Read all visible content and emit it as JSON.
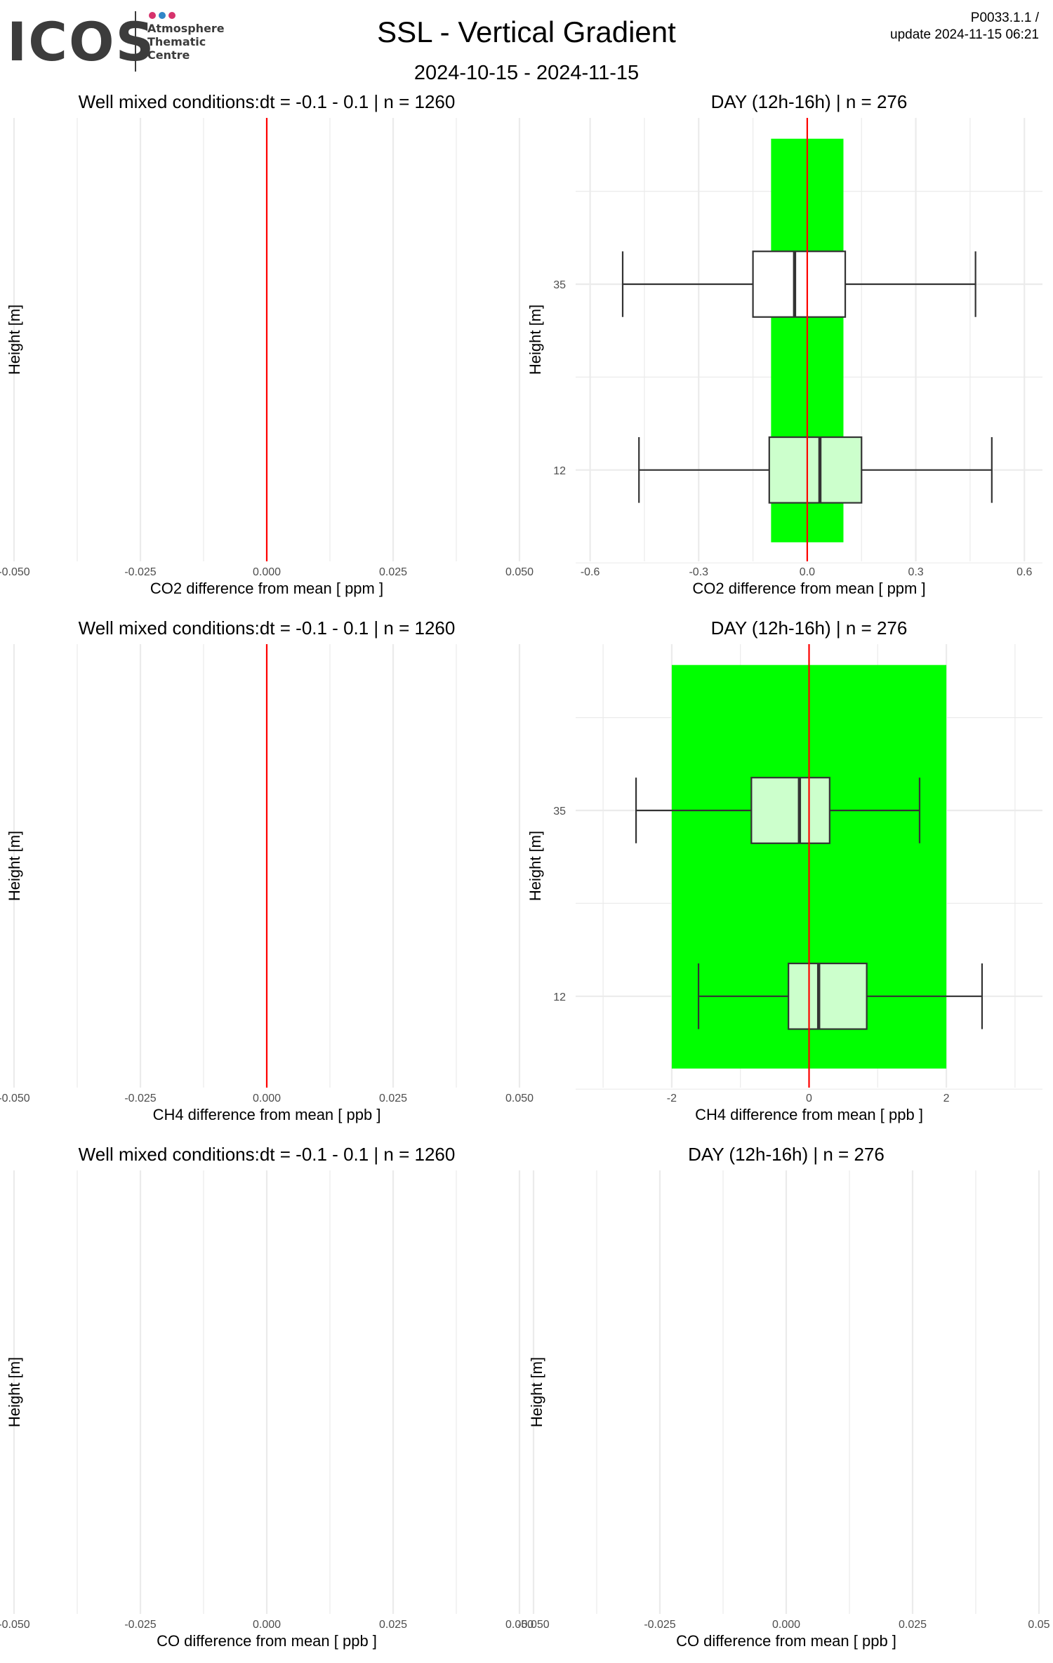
{
  "header": {
    "logo_text": "ICOS",
    "logo_sub": [
      "Atmosphere",
      "Thematic",
      "Centre"
    ],
    "title": "SSL - Vertical Gradient",
    "subtitle": "2024-10-15 - 2024-11-15",
    "meta_line1": "P0033.1.1 /",
    "meta_line2": "update  2024-11-15 06:21"
  },
  "colors": {
    "band": "#00ff00",
    "box_fill_light": "#ccffcc",
    "box_fill_white": "#ffffff",
    "zero_line": "#ff0000",
    "grid": "#ebebeb",
    "box_stroke": "#333333",
    "logo_dots": [
      "#d6336c",
      "#2f86c8",
      "#d6336c"
    ]
  },
  "chart_data": [
    {
      "type": "box",
      "title": "Well mixed conditions:dt = -0.1 - 0.1 | n = 1260",
      "xlabel": "CO2  difference from mean [ ppm ]",
      "ylabel": "Height [m]",
      "xlim": [
        -0.05,
        0.05
      ],
      "xticks": [
        "-0.050",
        "-0.025",
        "0.000",
        "0.025",
        "0.050"
      ],
      "xtick_values": [
        -0.05,
        -0.025,
        0,
        0.025,
        0.05
      ],
      "yticks": [],
      "zero_line": 0,
      "boxes": []
    },
    {
      "type": "box",
      "title": "DAY (12h-16h) | n = 276",
      "xlabel": "CO2  difference from mean [ ppm ]",
      "ylabel": "Height [m]",
      "xlim": [
        -0.64,
        0.65
      ],
      "xticks": [
        "-0.6",
        "-0.3",
        "0.0",
        "0.3",
        "0.6"
      ],
      "xtick_values": [
        -0.6,
        -0.3,
        0,
        0.3,
        0.6
      ],
      "yticks": [
        "35",
        "12"
      ],
      "zero_line": 0,
      "band": [
        -0.1,
        0.1
      ],
      "boxes": [
        {
          "height": "35",
          "whisker_low": -0.51,
          "q1": -0.15,
          "median": -0.035,
          "q3": 0.105,
          "whisker_high": 0.465,
          "fill": "white"
        },
        {
          "height": "12",
          "whisker_low": -0.465,
          "q1": -0.105,
          "median": 0.035,
          "q3": 0.15,
          "whisker_high": 0.51,
          "fill": "light"
        }
      ]
    },
    {
      "type": "box",
      "title": "Well mixed conditions:dt = -0.1 - 0.1 | n = 1260",
      "xlabel": "CH4  difference from mean [ ppb ]",
      "ylabel": "Height [m]",
      "xlim": [
        -0.05,
        0.05
      ],
      "xticks": [
        "-0.050",
        "-0.025",
        "0.000",
        "0.025",
        "0.050"
      ],
      "xtick_values": [
        -0.05,
        -0.025,
        0,
        0.025,
        0.05
      ],
      "yticks": [],
      "zero_line": 0,
      "boxes": []
    },
    {
      "type": "box",
      "title": "DAY (12h-16h) | n = 276",
      "xlabel": "CH4  difference from mean [ ppb ]",
      "ylabel": "Height [m]",
      "xlim": [
        -3.4,
        3.4
      ],
      "xticks": [
        "-2",
        "0",
        "2"
      ],
      "xtick_values": [
        -2,
        0,
        2
      ],
      "yticks": [
        "35",
        "12"
      ],
      "zero_line": 0,
      "band": [
        -2,
        2
      ],
      "boxes": [
        {
          "height": "35",
          "whisker_low": -2.52,
          "q1": -0.84,
          "median": -0.14,
          "q3": 0.3,
          "whisker_high": 1.61,
          "fill": "light"
        },
        {
          "height": "12",
          "whisker_low": -1.61,
          "q1": -0.3,
          "median": 0.14,
          "q3": 0.84,
          "whisker_high": 2.52,
          "fill": "light"
        }
      ]
    },
    {
      "type": "box",
      "title": "Well mixed conditions:dt = -0.1 - 0.1 | n = 1260",
      "xlabel": "CO  difference from mean [ ppb ]",
      "ylabel": "Height [m]",
      "xlim": [
        -0.05,
        0.05
      ],
      "xticks": [
        "-0.050",
        "-0.025",
        "0.000",
        "0.025",
        "0.050"
      ],
      "xtick_values": [
        -0.05,
        -0.025,
        0,
        0.025,
        0.05
      ],
      "yticks": [],
      "boxes": []
    },
    {
      "type": "box",
      "title": "DAY (12h-16h) | n = 276",
      "xlabel": "CO  difference from mean [ ppb ]",
      "ylabel": "Height [m]",
      "xlim": [
        -0.05,
        0.05
      ],
      "xticks": [
        "-0.050",
        "-0.025",
        "0.000",
        "0.025",
        "0.05"
      ],
      "xtick_values": [
        -0.05,
        -0.025,
        0,
        0.025,
        0.05
      ],
      "yticks": [],
      "boxes": []
    }
  ]
}
